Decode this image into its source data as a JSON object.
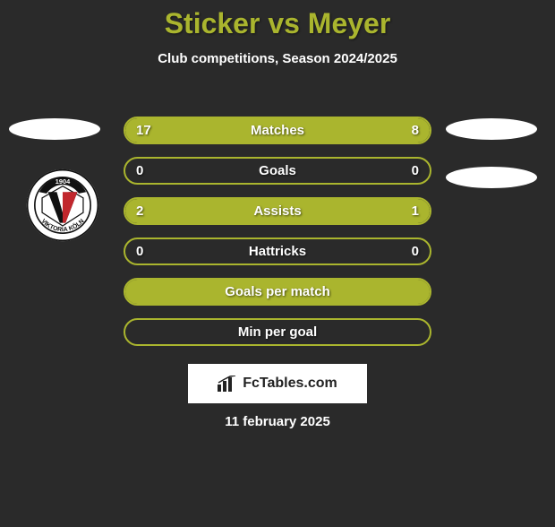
{
  "title": "Sticker vs Meyer",
  "subtitle": "Club competitions, Season 2024/2025",
  "colors": {
    "accent": "#aab52e",
    "background": "#2a2a2a",
    "text": "#ffffff",
    "logo_badge_bg": "#ffffff"
  },
  "stats": [
    {
      "label": "Matches",
      "left_value": "17",
      "right_value": "8",
      "left_width_pct": 68,
      "right_width_pct": 32,
      "show_values": true,
      "fill_mode": "split"
    },
    {
      "label": "Goals",
      "left_value": "0",
      "right_value": "0",
      "left_width_pct": 0,
      "right_width_pct": 0,
      "show_values": true,
      "fill_mode": "empty"
    },
    {
      "label": "Assists",
      "left_value": "2",
      "right_value": "1",
      "left_width_pct": 67,
      "right_width_pct": 33,
      "show_values": true,
      "fill_mode": "split"
    },
    {
      "label": "Hattricks",
      "left_value": "0",
      "right_value": "0",
      "left_width_pct": 0,
      "right_width_pct": 0,
      "show_values": true,
      "fill_mode": "empty"
    },
    {
      "label": "Goals per match",
      "left_value": "",
      "right_value": "",
      "left_width_pct": 100,
      "right_width_pct": 0,
      "show_values": false,
      "fill_mode": "full"
    },
    {
      "label": "Min per goal",
      "left_value": "",
      "right_value": "",
      "left_width_pct": 0,
      "right_width_pct": 0,
      "show_values": false,
      "fill_mode": "empty"
    }
  ],
  "club_logo": {
    "year": "1904",
    "letter": "V",
    "bottom_text": "VIKTORIA KÖLN",
    "ring_color": "#ffffff",
    "inner_bg": "#ffffff",
    "v_color": "#111111",
    "year_bg": "#111111",
    "red": "#c1272d"
  },
  "brand": {
    "text": "FcTables.com"
  },
  "date": "11 february 2025"
}
